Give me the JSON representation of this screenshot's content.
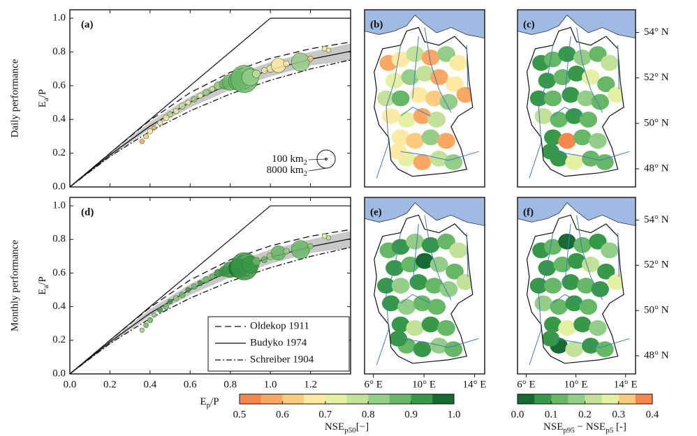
{
  "chart_data": [
    {
      "type": "scatter",
      "panel_label": "(a)",
      "row_label": "Daily performance",
      "ylabel": [
        "E",
        "a",
        "/P"
      ],
      "xlim": [
        0,
        1.4
      ],
      "ylim": [
        0,
        1.05
      ],
      "yticks": [
        {
          "value": 0,
          "label": "0.0"
        },
        {
          "value": 0.2,
          "label": "0.2"
        },
        {
          "value": 0.4,
          "label": "0.4"
        },
        {
          "value": 0.6,
          "label": "0.6"
        },
        {
          "value": 0.8,
          "label": "0.8"
        },
        {
          "value": 1.0,
          "label": "1.0"
        }
      ],
      "limit": {
        "x": [
          0,
          1.0,
          1.4
        ],
        "values": [
          0,
          1.0,
          1.0
        ]
      },
      "band": {
        "x": [
          0,
          0.2,
          0.4,
          0.6,
          0.8,
          1.0,
          1.2,
          1.4
        ],
        "lower": [
          0,
          0.175,
          0.345,
          0.47,
          0.575,
          0.655,
          0.72,
          0.75
        ],
        "upper": [
          0,
          0.195,
          0.385,
          0.535,
          0.655,
          0.74,
          0.8,
          0.85
        ]
      },
      "series": [
        {
          "name": "Oldekop 1911",
          "style": "dashed",
          "x": [
            0,
            0.2,
            0.4,
            0.6,
            0.8,
            1.0,
            1.2,
            1.4
          ],
          "values": [
            0,
            0.2,
            0.395,
            0.559,
            0.679,
            0.762,
            0.819,
            0.859
          ]
        },
        {
          "name": "Budyko 1974",
          "style": "solid",
          "x": [
            0,
            0.2,
            0.4,
            0.6,
            0.8,
            1.0,
            1.2,
            1.4
          ],
          "values": [
            0,
            0.19,
            0.361,
            0.502,
            0.612,
            0.694,
            0.757,
            0.804
          ]
        },
        {
          "name": "Schreiber 1904",
          "style": "dashdot",
          "x": [
            0,
            0.2,
            0.4,
            0.6,
            0.8,
            1.0,
            1.2,
            1.4
          ],
          "values": [
            0,
            0.181,
            0.33,
            0.451,
            0.551,
            0.632,
            0.699,
            0.753
          ]
        }
      ],
      "points": {
        "x": [
          0.36,
          0.38,
          0.4,
          0.42,
          0.45,
          0.48,
          0.5,
          0.53,
          0.56,
          0.59,
          0.62,
          0.65,
          0.68,
          0.71,
          0.74,
          0.77,
          0.8,
          0.84,
          0.87,
          0.9,
          0.93,
          0.97,
          1.0,
          1.04,
          1.08,
          1.15,
          1.2,
          1.27,
          1.29
        ],
        "values": [
          0.27,
          0.3,
          0.33,
          0.35,
          0.38,
          0.41,
          0.43,
          0.45,
          0.48,
          0.5,
          0.52,
          0.54,
          0.56,
          0.58,
          0.6,
          0.61,
          0.62,
          0.63,
          0.64,
          0.65,
          0.67,
          0.69,
          0.7,
          0.72,
          0.73,
          0.74,
          0.76,
          0.82,
          0.81
        ],
        "sizes": [
          500,
          600,
          700,
          500,
          650,
          800,
          600,
          700,
          900,
          650,
          800,
          700,
          1000,
          700,
          1500,
          2500,
          6000,
          9000,
          18000,
          7000,
          1500,
          900,
          1200,
          5000,
          900,
          8000,
          700,
          600,
          500
        ],
        "color_values": [
          0.55,
          0.62,
          0.7,
          0.6,
          0.72,
          0.65,
          0.75,
          0.68,
          0.78,
          0.7,
          0.8,
          0.74,
          0.82,
          0.76,
          0.8,
          0.85,
          0.86,
          0.88,
          0.87,
          0.84,
          0.78,
          0.72,
          0.66,
          0.7,
          0.68,
          0.82,
          0.62,
          0.65,
          0.7
        ]
      },
      "size_legend": [
        {
          "area": 100,
          "label": [
            "100 km",
            "2"
          ]
        },
        {
          "area": 8000,
          "label": [
            "8000 km",
            "2"
          ]
        }
      ]
    },
    {
      "type": "map",
      "panel_label": "(b)",
      "xlim": [
        5.3,
        14.8
      ],
      "ylim": [
        47.2,
        55.0
      ],
      "values": [
        0.6,
        0.7,
        0.75,
        0.55,
        0.8,
        0.65,
        0.72,
        0.82,
        0.78,
        0.6,
        0.68,
        0.55,
        0.75,
        0.85,
        0.7,
        0.62,
        0.8,
        0.66,
        0.73,
        0.58,
        0.77,
        0.69,
        0.64,
        0.81,
        0.57,
        0.72,
        0.6,
        0.76,
        0.83,
        0.67
      ]
    },
    {
      "type": "map",
      "panel_label": "(c)",
      "xlim": [
        5.3,
        14.8
      ],
      "ylim": [
        47.2,
        55.0
      ],
      "yticks": [
        {
          "value": 48,
          "label": "48° N"
        },
        {
          "value": 50,
          "label": "50° N"
        },
        {
          "value": 52,
          "label": "52° N"
        },
        {
          "value": 54,
          "label": "54° N"
        }
      ],
      "values": [
        0.08,
        0.12,
        0.05,
        0.18,
        0.1,
        0.22,
        0.07,
        0.14,
        0.09,
        0.25,
        0.11,
        0.3,
        0.06,
        0.13,
        0.08,
        0.17,
        0.1,
        0.2,
        0.12,
        0.07,
        0.15,
        0.09,
        0.36,
        0.11,
        0.19,
        0.06,
        0.28,
        0.1,
        0.14,
        0.08
      ]
    },
    {
      "type": "scatter",
      "panel_label": "(d)",
      "row_label": "Monthly performance",
      "ylabel": [
        "E",
        "a",
        "/P"
      ],
      "xlabel": [
        "E",
        "p",
        "/P"
      ],
      "xlim": [
        0,
        1.4
      ],
      "ylim": [
        0,
        1.05
      ],
      "legend": "lower right",
      "xticks": [
        {
          "value": 0,
          "label": "0.0"
        },
        {
          "value": 0.2,
          "label": "0.2"
        },
        {
          "value": 0.4,
          "label": "0.4"
        },
        {
          "value": 0.6,
          "label": "0.6"
        },
        {
          "value": 0.8,
          "label": "0.8"
        },
        {
          "value": 1.0,
          "label": "1.0"
        },
        {
          "value": 1.2,
          "label": "1.2"
        }
      ],
      "yticks": [
        {
          "value": 0,
          "label": "0.0"
        },
        {
          "value": 0.2,
          "label": "0.2"
        },
        {
          "value": 0.4,
          "label": "0.4"
        },
        {
          "value": 0.6,
          "label": "0.6"
        },
        {
          "value": 0.8,
          "label": "0.8"
        },
        {
          "value": 1.0,
          "label": "1.0"
        }
      ],
      "limit": {
        "x": [
          0,
          1.0,
          1.4
        ],
        "values": [
          0,
          1.0,
          1.0
        ]
      },
      "band": {
        "x": [
          0,
          0.2,
          0.4,
          0.6,
          0.8,
          1.0,
          1.2,
          1.4
        ],
        "lower": [
          0,
          0.175,
          0.345,
          0.47,
          0.575,
          0.655,
          0.72,
          0.75
        ],
        "upper": [
          0,
          0.195,
          0.385,
          0.535,
          0.655,
          0.74,
          0.8,
          0.85
        ]
      },
      "series": [
        {
          "name": "Oldekop 1911",
          "style": "dashed",
          "x": [
            0,
            0.2,
            0.4,
            0.6,
            0.8,
            1.0,
            1.2,
            1.4
          ],
          "values": [
            0,
            0.2,
            0.395,
            0.559,
            0.679,
            0.762,
            0.819,
            0.859
          ]
        },
        {
          "name": "Budyko 1974",
          "style": "solid",
          "x": [
            0,
            0.2,
            0.4,
            0.6,
            0.8,
            1.0,
            1.2,
            1.4
          ],
          "values": [
            0,
            0.19,
            0.361,
            0.502,
            0.612,
            0.694,
            0.757,
            0.804
          ]
        },
        {
          "name": "Schreiber 1904",
          "style": "dashdot",
          "x": [
            0,
            0.2,
            0.4,
            0.6,
            0.8,
            1.0,
            1.2,
            1.4
          ],
          "values": [
            0,
            0.181,
            0.33,
            0.451,
            0.551,
            0.632,
            0.699,
            0.753
          ]
        }
      ],
      "points": {
        "x": [
          0.36,
          0.38,
          0.4,
          0.42,
          0.45,
          0.48,
          0.5,
          0.53,
          0.56,
          0.59,
          0.62,
          0.65,
          0.68,
          0.71,
          0.74,
          0.77,
          0.8,
          0.84,
          0.87,
          0.9,
          0.93,
          0.97,
          1.0,
          1.04,
          1.08,
          1.15,
          1.2,
          1.27,
          1.29
        ],
        "values": [
          0.26,
          0.29,
          0.32,
          0.35,
          0.38,
          0.4,
          0.43,
          0.45,
          0.47,
          0.5,
          0.52,
          0.54,
          0.56,
          0.58,
          0.6,
          0.61,
          0.62,
          0.63,
          0.64,
          0.65,
          0.67,
          0.68,
          0.7,
          0.72,
          0.73,
          0.74,
          0.76,
          0.82,
          0.81
        ],
        "sizes": [
          500,
          600,
          700,
          500,
          650,
          800,
          600,
          700,
          900,
          650,
          800,
          700,
          1000,
          700,
          1500,
          2500,
          6000,
          9000,
          18000,
          7000,
          1500,
          900,
          1200,
          5000,
          900,
          8000,
          700,
          600,
          500
        ],
        "color_values": [
          0.8,
          0.85,
          0.88,
          0.82,
          0.9,
          0.86,
          0.92,
          0.84,
          0.88,
          0.9,
          0.86,
          0.92,
          0.88,
          0.85,
          0.9,
          0.92,
          0.93,
          0.95,
          0.92,
          0.9,
          0.88,
          0.86,
          0.8,
          0.86,
          0.84,
          0.85,
          0.8,
          0.72,
          0.75
        ]
      }
    },
    {
      "type": "map",
      "panel_label": "(e)",
      "xlim": [
        5.3,
        14.8
      ],
      "ylim": [
        47.2,
        55.0
      ],
      "xticks": [
        {
          "value": 6,
          "label": "6° E"
        },
        {
          "value": 10,
          "label": "10° E"
        },
        {
          "value": 14,
          "label": "14° E"
        }
      ],
      "values": [
        0.88,
        0.9,
        0.82,
        0.93,
        0.86,
        0.78,
        0.91,
        0.85,
        0.95,
        0.8,
        0.89,
        0.75,
        0.92,
        0.84,
        0.9,
        0.87,
        0.83,
        0.94,
        0.81,
        0.88,
        0.86,
        0.9,
        0.77,
        0.92,
        0.85,
        0.89,
        0.91,
        0.83,
        0.87,
        0.93
      ]
    },
    {
      "type": "map",
      "panel_label": "(f)",
      "xlim": [
        5.3,
        14.8
      ],
      "ylim": [
        47.2,
        55.0
      ],
      "xticks": [
        {
          "value": 6,
          "label": "6° E"
        },
        {
          "value": 10,
          "label": "10° E"
        },
        {
          "value": 14,
          "label": "14° E"
        }
      ],
      "yticks": [
        {
          "value": 48,
          "label": "48° N"
        },
        {
          "value": 50,
          "label": "50° N"
        },
        {
          "value": 52,
          "label": "52° N"
        },
        {
          "value": 54,
          "label": "54° N"
        }
      ],
      "values": [
        0.06,
        0.1,
        0.04,
        0.14,
        0.08,
        0.18,
        0.05,
        0.12,
        0.07,
        0.2,
        0.09,
        0.26,
        0.05,
        0.11,
        0.06,
        0.15,
        0.08,
        0.16,
        0.1,
        0.05,
        0.13,
        0.07,
        0.3,
        0.09,
        0.17,
        0.04,
        0.22,
        0.08,
        0.12,
        0.06
      ]
    },
    {
      "type": "colorbar",
      "label": [
        "NSE",
        "p50",
        "[−]"
      ],
      "xlim": [
        0.5,
        1.0
      ],
      "xticks": [
        {
          "value": 0.5,
          "label": "0.5"
        },
        {
          "value": 0.6,
          "label": "0.6"
        },
        {
          "value": 0.7,
          "label": "0.7"
        },
        {
          "value": 0.8,
          "label": "0.8"
        },
        {
          "value": 0.9,
          "label": "0.9"
        },
        {
          "value": 1.0,
          "label": "1.0"
        }
      ],
      "colors": [
        "#f4874e",
        "#f8a862",
        "#fbcb7e",
        "#fdeaa2",
        "#e5f0a2",
        "#c2e29a",
        "#94cd88",
        "#66b766",
        "#369848",
        "#176a34"
      ]
    },
    {
      "type": "colorbar",
      "label": [
        "NSE",
        "p95",
        " − NSE",
        "p5",
        " [-]"
      ],
      "xlim": [
        0,
        0.4
      ],
      "xticks": [
        {
          "value": 0,
          "label": "0.0"
        },
        {
          "value": 0.1,
          "label": "0.1"
        },
        {
          "value": 0.2,
          "label": "0.2"
        },
        {
          "value": 0.3,
          "label": "0.3"
        },
        {
          "value": 0.4,
          "label": "0.4"
        }
      ],
      "colors": [
        "#176a34",
        "#369848",
        "#66b766",
        "#94cd88",
        "#c2e29a",
        "#e5f0a2",
        "#fbcb7e",
        "#f4874e"
      ]
    }
  ]
}
